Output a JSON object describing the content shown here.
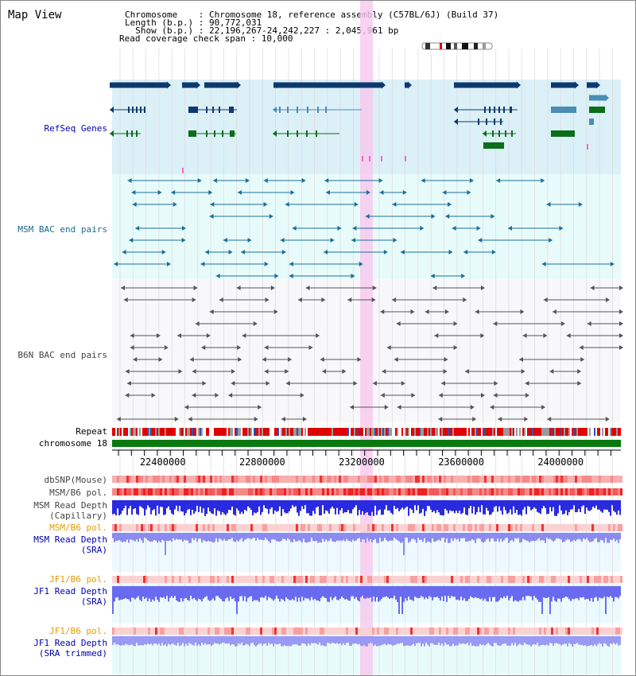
{
  "title": "Map View",
  "header": {
    "chromosome_line": "Chromosome    : Chromosome 18, reference assembly (C57BL/6J) (Build 37)",
    "length_line": "Length (b.p.) : 90,772,031",
    "show_line": "  Show (b.p.) : 22,196,267-24,242,227 : 2,045,961 bp",
    "coverage_line": "Read coverage check span : 10,000"
  },
  "tracks": {
    "refseq": "RefSeq Genes",
    "msm_bac": "MSM BAC end pairs",
    "b6n_bac": "B6N BAC end pairs",
    "repeat": "Repeat",
    "chromosome": "chromosome 18",
    "dbsnp": "dbSNP(Mouse)",
    "msm_b6_pol_1": "MSM/B6 pol.",
    "msm_depth_cap": "MSM Read Depth",
    "msm_depth_cap_sub": "(Capillary)",
    "msm_b6_pol_2": "MSM/B6 pol.",
    "msm_depth_sra": "MSM Read Depth",
    "msm_depth_sra_sub": "(SRA)",
    "jf1_b6_pol_1": "JF1/B6 pol.",
    "jf1_depth_sra": "JF1 Read Depth",
    "jf1_depth_sra_sub": "(SRA)",
    "jf1_b6_pol_2": "JF1/B6 pol.",
    "jf1_depth_trim": "JF1 Read Depth",
    "jf1_depth_trim_sub": "(SRA trimmed)"
  },
  "axis": {
    "ticks": [
      "22400000",
      "22800000",
      "23200000",
      "23600000",
      "24000000"
    ],
    "tick_values": [
      22400000,
      22800000,
      23200000,
      23600000,
      24000000
    ],
    "range": [
      22196267,
      24242227
    ]
  },
  "colors": {
    "refseq_bg": "#dcf0f8",
    "msm_bg": "#e8fbfb",
    "highlight": "#f7c8ee",
    "gene_dark": "#0d3a6e",
    "gene_mid": "#4a8db5",
    "gene_green": "#0a6e1a",
    "msm_pair": "#1a6f99",
    "b6n_pair": "#555555",
    "chromosome_bar": "#0a7a10",
    "label_blue": "#0000aa",
    "label_teal": "#1a6a8a",
    "label_gray": "#444444",
    "label_orange": "#e49b00"
  }
}
